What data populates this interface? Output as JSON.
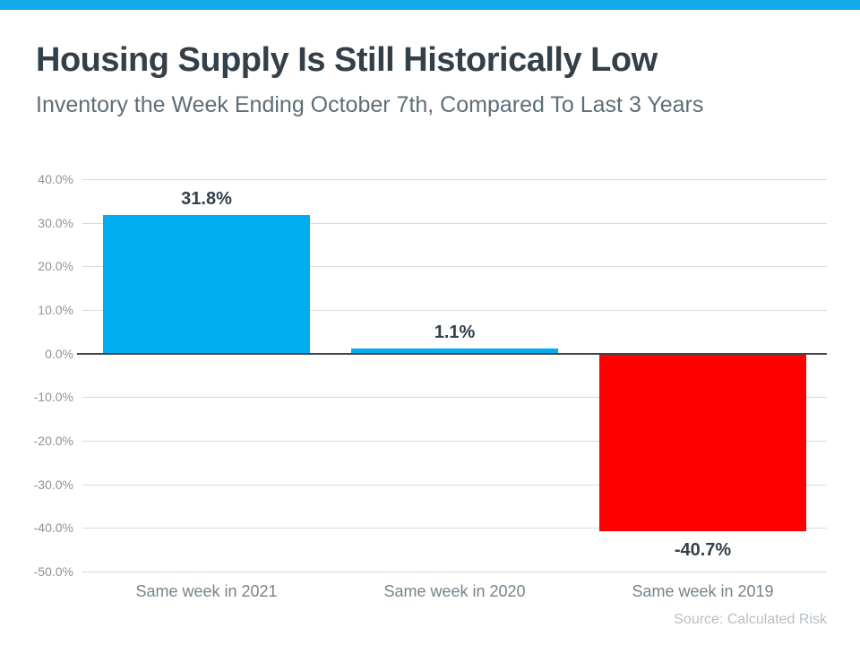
{
  "page": {
    "accent_bar_color": "#12abe9"
  },
  "chart_data": {
    "type": "bar",
    "title": "Housing Supply Is Still Historically Low",
    "subtitle": "Inventory the Week Ending October 7th, Compared To Last 3 Years",
    "categories": [
      "Same week in 2021",
      "Same week in 2020",
      "Same week in 2019"
    ],
    "values": [
      31.8,
      1.1,
      -40.7
    ],
    "data_labels": [
      "31.8%",
      "1.1%",
      "-40.7%"
    ],
    "bar_colors": [
      "#00aeef",
      "#00aeef",
      "#ff0000"
    ],
    "y_tick_values": [
      40,
      30,
      20,
      10,
      0,
      -10,
      -20,
      -30,
      -40,
      -50
    ],
    "y_tick_labels": [
      "40.0%",
      "30.0%",
      "20.0%",
      "10.0%",
      "0.0%",
      "-10.0%",
      "-20.0%",
      "-30.0%",
      "-40.0%",
      "-50.0%"
    ],
    "ylim": [
      -50,
      40
    ],
    "grid": true,
    "legend": false,
    "xlabel": "",
    "ylabel": "",
    "source": "Source: Calculated Risk"
  }
}
